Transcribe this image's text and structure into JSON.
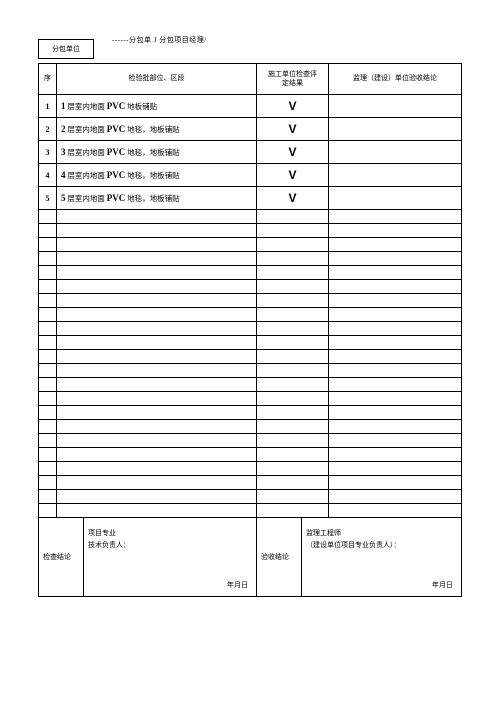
{
  "header": {
    "unit_box_label": "分包单位",
    "sub_text": "------分包单 J 分包项目经理/"
  },
  "columns": {
    "seq": "序",
    "desc": "检验批部位、区段",
    "eval": "施工单位检查评\n定结果",
    "supv": "监理（建设）单位验收结论"
  },
  "rows": [
    {
      "seq_bold": "1",
      "prefix_bold": "1",
      "body": " 层室内地面 ",
      "mat": "PVC",
      "tail": " 地板铺贴",
      "check": "V"
    },
    {
      "seq_bold": "2",
      "prefix_bold": "2",
      "body": " 层室内地面 ",
      "mat": "PVC",
      "tail": " 地毯，地板铺贴",
      "check": "V"
    },
    {
      "seq_bold": "3",
      "prefix_bold": "3",
      "body": " 层室内地面 ",
      "mat": "PVC",
      "tail": " 地毯，地板铺贴",
      "check": "V"
    },
    {
      "seq_bold": "4",
      "prefix_bold": "4",
      "body": " 层室内地面 ",
      "mat": "PVC",
      "tail": " 地毯，地板铺贴",
      "check": "V"
    },
    {
      "seq_bold": "5",
      "prefix_bold": "5",
      "body": " 层室内地面 ",
      "mat": "PVC",
      "tail": " 地毯，地板铺贴",
      "check": "V"
    }
  ],
  "empty_small_rows": 22,
  "footer": {
    "left": {
      "label": "检查结论",
      "line1": "项目专业",
      "line2": "技术负责人：",
      "date": "年月日"
    },
    "right": {
      "label": "验收结论",
      "line1": "监理工程师",
      "line2": "（建设单位项目专业负责人）：",
      "date": "年月日"
    }
  }
}
